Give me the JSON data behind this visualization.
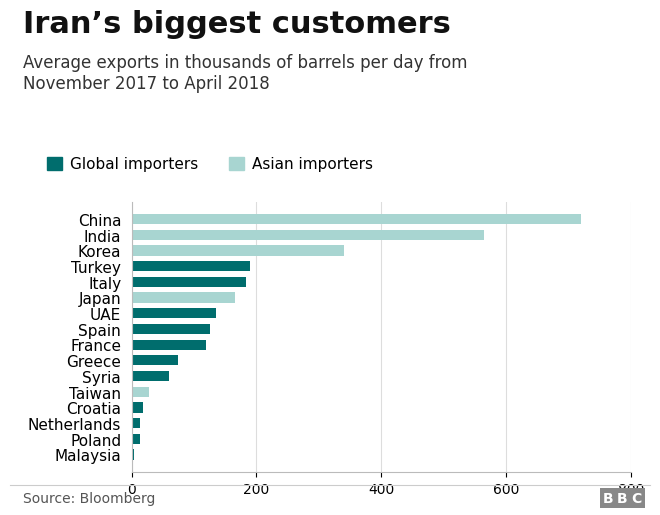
{
  "title": "Iran’s biggest customers",
  "subtitle": "Average exports in thousands of barrels per day from\nNovember 2017 to April 2018",
  "source": "Source: Bloomberg",
  "bbc_logo": "BBC",
  "categories": [
    "China",
    "India",
    "Korea",
    "Turkey",
    "Italy",
    "Japan",
    "UAE",
    "Spain",
    "France",
    "Greece",
    "Syria",
    "Taiwan",
    "Croatia",
    "Netherlands",
    "Poland",
    "Malaysia"
  ],
  "values": [
    720,
    565,
    340,
    190,
    183,
    165,
    135,
    125,
    120,
    75,
    60,
    28,
    18,
    14,
    13,
    4
  ],
  "colors": [
    "#a8d5d1",
    "#a8d5d1",
    "#a8d5d1",
    "#006d6d",
    "#006d6d",
    "#a8d5d1",
    "#006d6d",
    "#006d6d",
    "#006d6d",
    "#006d6d",
    "#006d6d",
    "#a8d5d1",
    "#006d6d",
    "#006d6d",
    "#006d6d",
    "#006d6d"
  ],
  "asian_color": "#a8d5d1",
  "global_color": "#006d6d",
  "legend_global": "Global importers",
  "legend_asian": "Asian importers",
  "xlim": [
    0,
    800
  ],
  "xticks": [
    0,
    200,
    400,
    600,
    800
  ],
  "background_color": "#ffffff",
  "title_fontsize": 22,
  "subtitle_fontsize": 12,
  "legend_fontsize": 11,
  "ytick_fontsize": 11,
  "xtick_fontsize": 10,
  "source_fontsize": 10
}
